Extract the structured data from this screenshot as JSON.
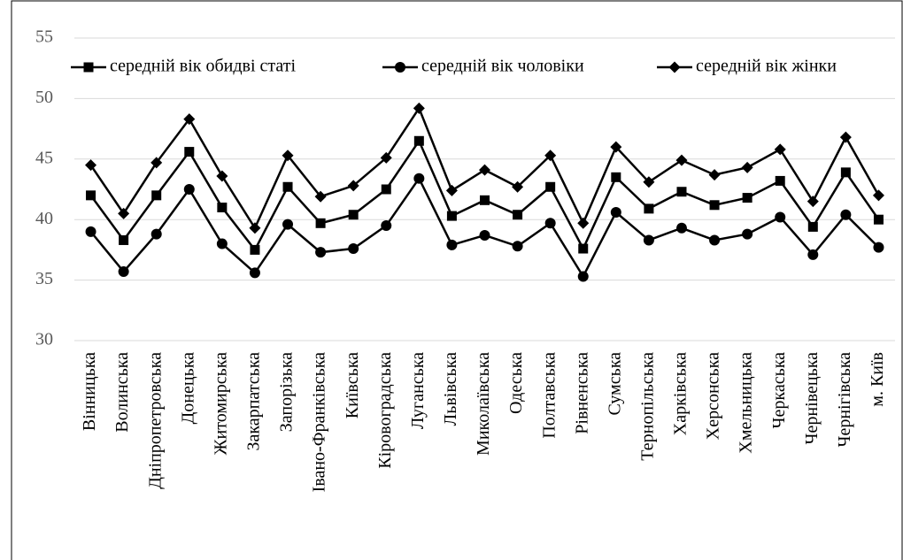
{
  "chart_data": {
    "type": "line",
    "categories": [
      "Вінницька",
      "Волинська",
      "Дніпропетровська",
      "Донецька",
      "Житомирська",
      "Закарпатська",
      "Запорізька",
      "Івано-Франківська",
      "Київська",
      "Кіровоградська",
      "Луганська",
      "Львівська",
      "Миколаївська",
      "Одеська",
      "Полтавська",
      "Рівненська",
      "Сумська",
      "Тернопільська",
      "Харківська",
      "Херсонська",
      "Хмельницька",
      "Черкаська",
      "Чернівецька",
      "Чернігівська",
      "м. Київ"
    ],
    "series": [
      {
        "name": "середній вік обидві статі",
        "color": "#000000",
        "marker": "square",
        "values": [
          42.0,
          38.3,
          42.0,
          45.6,
          41.0,
          37.5,
          42.7,
          39.7,
          40.4,
          42.5,
          46.5,
          40.3,
          41.6,
          40.4,
          42.7,
          37.6,
          43.5,
          40.9,
          42.3,
          41.2,
          41.8,
          43.2,
          39.4,
          43.9,
          40.0
        ]
      },
      {
        "name": "середній вік чоловіки",
        "color": "#000000",
        "marker": "circle",
        "values": [
          39.0,
          35.7,
          38.8,
          42.5,
          38.0,
          35.6,
          39.6,
          37.3,
          37.6,
          39.5,
          43.4,
          37.9,
          38.7,
          37.8,
          39.7,
          35.3,
          40.6,
          38.3,
          39.3,
          38.3,
          38.8,
          40.2,
          37.1,
          40.4,
          37.7
        ]
      },
      {
        "name": "середній вік жінки",
        "color": "#000000",
        "marker": "diamond",
        "values": [
          44.5,
          40.5,
          44.7,
          48.3,
          43.6,
          39.3,
          45.3,
          41.9,
          42.8,
          45.1,
          49.2,
          42.4,
          44.1,
          42.7,
          45.3,
          39.7,
          46.0,
          43.1,
          44.9,
          43.7,
          44.3,
          45.8,
          41.5,
          46.8,
          42.0
        ]
      }
    ],
    "ylim": [
      30,
      55
    ],
    "yticks": [
      30,
      35,
      40,
      45,
      50,
      55
    ],
    "grid": true,
    "legend": "top"
  }
}
